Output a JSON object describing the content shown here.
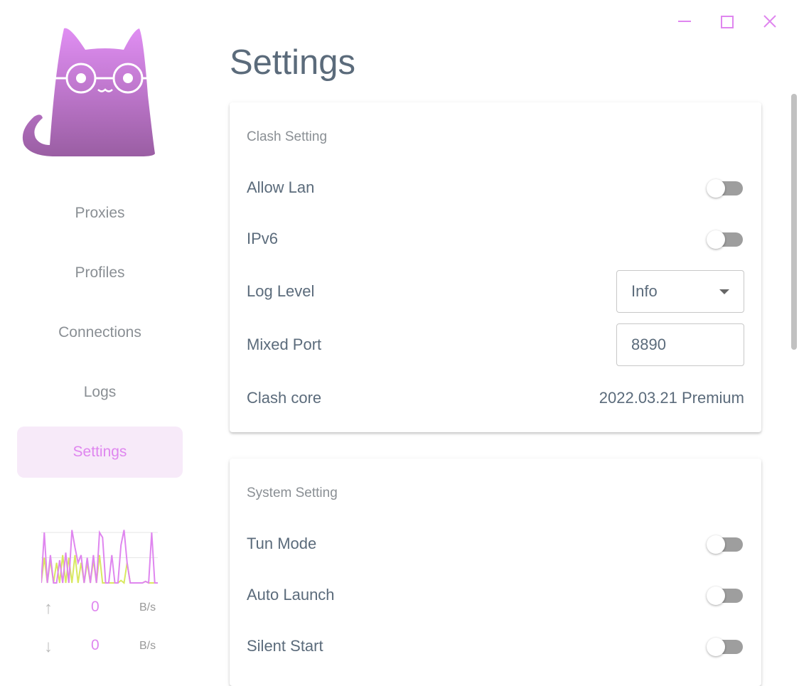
{
  "window": {
    "controls": [
      "minimize",
      "maximize",
      "close"
    ],
    "accent": "#df86ef"
  },
  "sidebar": {
    "logo": "cat-logo",
    "items": [
      {
        "label": "Proxies"
      },
      {
        "label": "Profiles"
      },
      {
        "label": "Connections"
      },
      {
        "label": "Logs"
      },
      {
        "label": "Settings",
        "active": true
      }
    ],
    "traffic": {
      "upload": {
        "value": "0",
        "unit": "B/s"
      },
      "download": {
        "value": "0",
        "unit": "B/s"
      },
      "graph": {
        "series_purple": [
          0,
          1,
          0,
          0.55,
          0,
          0,
          0.45,
          0,
          0.6,
          0,
          1.05,
          0.7,
          0.4,
          0.55,
          0,
          0.5,
          0,
          0.55,
          0,
          1,
          0.9,
          0,
          0,
          0.55,
          0,
          0,
          0.75,
          1.05,
          0.4,
          0,
          0,
          0,
          0,
          0,
          0.03,
          0,
          1,
          0,
          0
        ],
        "series_yellow": [
          0,
          0.5,
          0,
          0.45,
          0,
          0.4,
          0,
          0.55,
          0,
          0.5,
          0,
          0.55,
          0,
          0.4,
          0,
          0.4,
          0,
          0.45,
          0,
          0.55,
          0,
          0,
          0,
          0,
          0,
          0,
          0.05,
          0,
          0.4,
          0,
          0,
          0,
          0,
          0,
          0.03,
          0,
          0,
          0,
          0
        ],
        "colors": {
          "purple": "#df86ef",
          "yellow": "#d9e860",
          "grid": "#e6e6e6"
        }
      }
    }
  },
  "main": {
    "title": "Settings",
    "clash": {
      "title": "Clash Setting",
      "allow_lan": {
        "label": "Allow Lan",
        "on": false
      },
      "ipv6": {
        "label": "IPv6",
        "on": false
      },
      "log_level": {
        "label": "Log Level",
        "value": "Info"
      },
      "mixed_port": {
        "label": "Mixed Port",
        "value": "8890"
      },
      "core": {
        "label": "Clash core",
        "value": "2022.03.21 Premium"
      }
    },
    "system": {
      "title": "System Setting",
      "tun": {
        "label": "Tun Mode",
        "on": false
      },
      "auto_launch": {
        "label": "Auto Launch",
        "on": false
      },
      "silent_start": {
        "label": "Silent Start",
        "on": false
      }
    }
  }
}
